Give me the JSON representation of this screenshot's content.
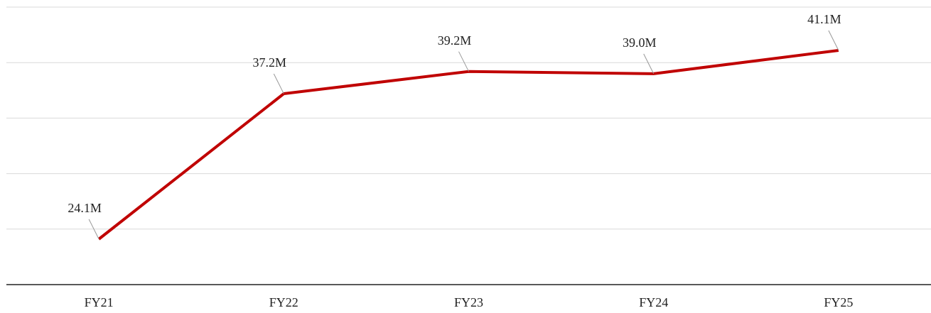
{
  "chart_data": {
    "type": "line",
    "categories": [
      "FY21",
      "FY22",
      "FY23",
      "FY24",
      "FY25"
    ],
    "series": [
      {
        "color": "#c00000",
        "values": [
          24.1,
          37.2,
          39.2,
          39.0,
          41.1
        ],
        "value_labels": [
          "24.1M",
          "37.2M",
          "39.2M",
          "39.0M",
          "41.1M"
        ]
      }
    ],
    "ylim": [
      20,
      45
    ],
    "yticks": [
      20,
      25,
      30,
      35,
      40,
      45
    ],
    "grid": true
  }
}
